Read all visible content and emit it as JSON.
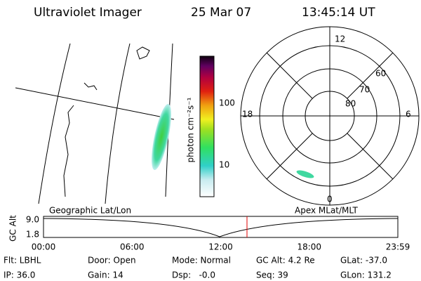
{
  "header": {
    "title": "Ultraviolet Imager",
    "date": "25 Mar 07",
    "time": "13:45:14 UT"
  },
  "colorbar": {
    "label": "photon cm⁻²s⁻¹",
    "ticks": [
      "100",
      "10"
    ]
  },
  "polar": {
    "mlt_labels": [
      "12",
      "18",
      "6",
      "0"
    ],
    "lat_labels": [
      "60",
      "70",
      "80"
    ]
  },
  "timeline": {
    "left_caption": "Geographic Lat/Lon",
    "right_caption": "Apex MLat/MLT",
    "y_label": "GC Alt",
    "y_ticks": [
      "9.0",
      "1.8"
    ],
    "x_ticks": [
      "00:00",
      "06:00",
      "12:00",
      "18:00",
      "23:59"
    ]
  },
  "footer": {
    "rows": [
      [
        "Flt: LBHL",
        "Door: Open",
        "Mode: Normal",
        "GC Alt: 4.2 Re",
        "GLat: -37.0"
      ],
      [
        "IP: 36.0",
        "Gain: 14",
        "Dsp:   -0.0",
        "Seq: 39",
        "GLon: 131.2"
      ]
    ]
  }
}
